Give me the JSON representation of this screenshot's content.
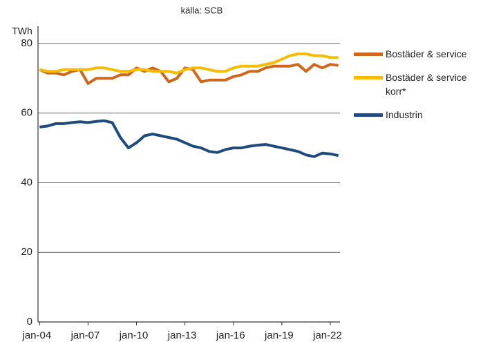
{
  "chart_data": {
    "type": "line",
    "title": "källa: SCB",
    "y_label": "TWh",
    "x": [
      2004,
      2004.5,
      2005,
      2005.5,
      2006,
      2006.5,
      2007,
      2007.5,
      2008,
      2008.5,
      2009,
      2009.5,
      2010,
      2010.5,
      2011,
      2011.5,
      2012,
      2012.5,
      2013,
      2013.5,
      2014,
      2014.5,
      2015,
      2015.5,
      2016,
      2016.5,
      2017,
      2017.5,
      2018,
      2018.5,
      2019,
      2019.5,
      2020,
      2020.5,
      2021,
      2021.5,
      2022,
      2022.5
    ],
    "series": [
      {
        "name": "Bostäder & service",
        "color": "#d0661c",
        "values": [
          72.5,
          71.5,
          71.5,
          71,
          72,
          72.5,
          68.5,
          70,
          70,
          70,
          71,
          71,
          73,
          72,
          73,
          72,
          69,
          70,
          73,
          72.5,
          69,
          69.5,
          69.5,
          69.5,
          70.5,
          71,
          72,
          72,
          73,
          73.5,
          73.5,
          73.5,
          74,
          72,
          74,
          73,
          74,
          73.7
        ]
      },
      {
        "name": "Bostäder & service korr*",
        "color": "#f5bc00",
        "values": [
          72.5,
          72,
          72,
          72.5,
          72.5,
          72.5,
          72.5,
          73,
          73,
          72.5,
          72,
          72,
          72.5,
          72.5,
          72,
          72,
          72,
          71.5,
          72.5,
          73,
          73,
          72.5,
          72,
          72,
          73,
          73.5,
          73.5,
          73.5,
          74,
          74.5,
          75.5,
          76.5,
          77,
          77,
          76.5,
          76.5,
          76,
          76
        ]
      },
      {
        "name": "Industrin",
        "color": "#1e4a7e",
        "values": [
          56,
          56.3,
          57,
          57,
          57.3,
          57.5,
          57.3,
          57.6,
          57.8,
          57.3,
          53,
          50,
          51.5,
          53.5,
          54,
          53.5,
          53,
          52.5,
          51.5,
          50.5,
          50,
          49,
          48.7,
          49.5,
          50,
          50,
          50.5,
          50.8,
          51,
          50.5,
          50,
          49.5,
          49,
          48,
          47.5,
          48.5,
          48.3,
          47.8
        ]
      }
    ],
    "xlim": [
      2003.9,
      2022.6
    ],
    "xticks": [
      {
        "value": 2004,
        "label": "jan-04"
      },
      {
        "value": 2007,
        "label": "jan-07"
      },
      {
        "value": 2010,
        "label": "jan-10"
      },
      {
        "value": 2013,
        "label": "jan-13"
      },
      {
        "value": 2016,
        "label": "jan-16"
      },
      {
        "value": 2019,
        "label": "jan-19"
      },
      {
        "value": 2022,
        "label": "jan-22"
      }
    ],
    "ylim": [
      0,
      80
    ],
    "yticks": [
      0,
      20,
      40,
      60,
      80
    ],
    "grid": true
  }
}
